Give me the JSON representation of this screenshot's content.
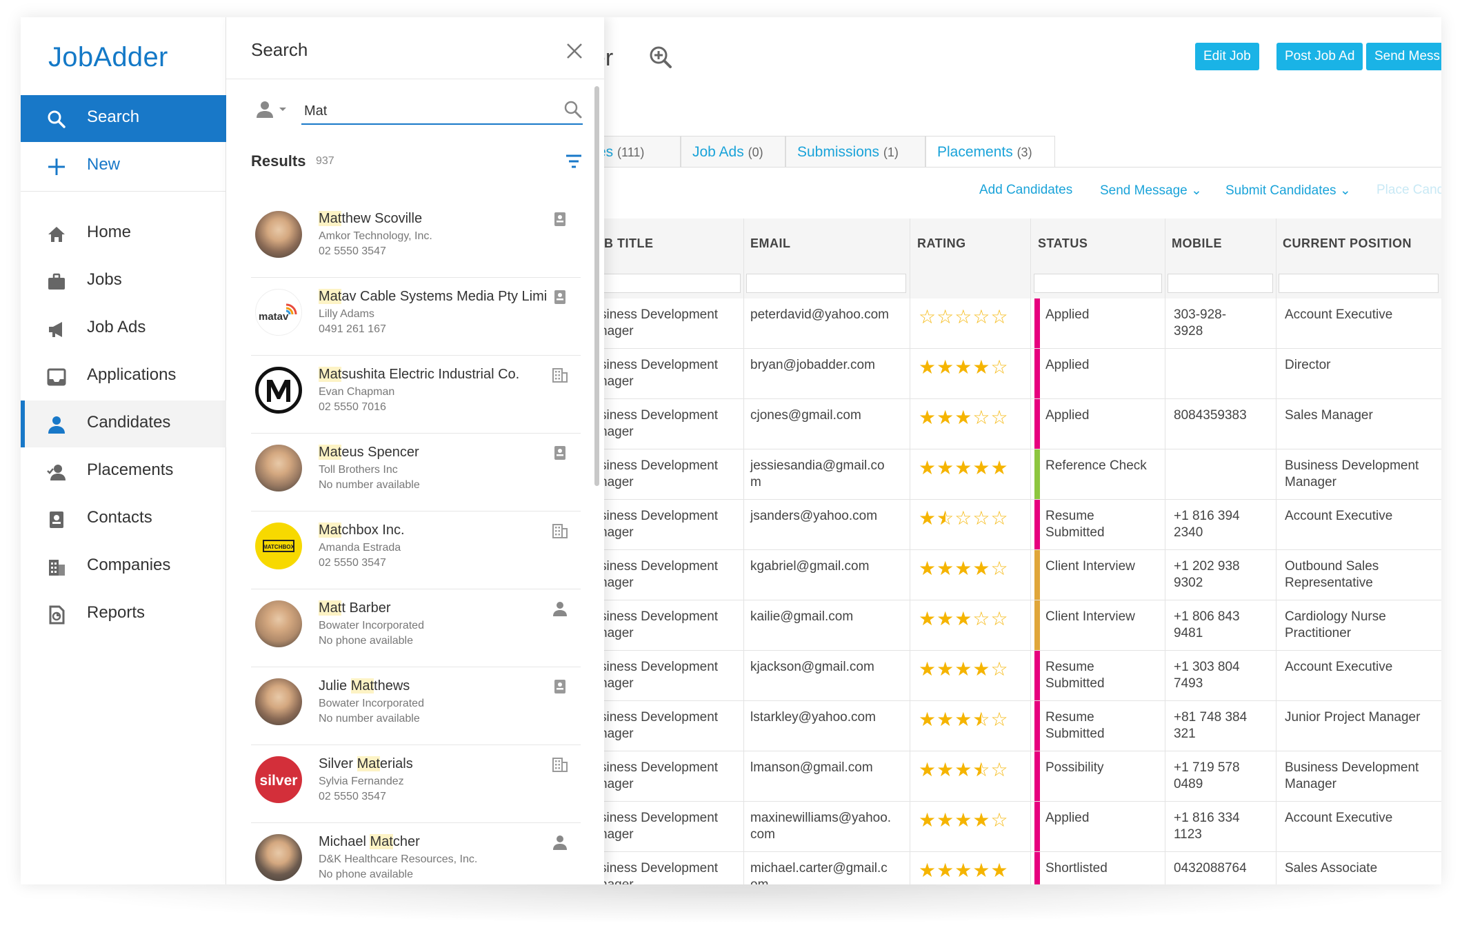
{
  "app": {
    "logo": "JobAdder",
    "page_title": "ger",
    "header_buttons": [
      "Edit Job",
      "Post Job Ad",
      "Send Mess"
    ]
  },
  "sidebar": {
    "items": [
      {
        "label": "Search",
        "icon": "search-icon"
      },
      {
        "label": "New",
        "icon": "plus-icon"
      },
      {
        "label": "Home",
        "icon": "home-icon"
      },
      {
        "label": "Jobs",
        "icon": "briefcase-icon"
      },
      {
        "label": "Job Ads",
        "icon": "megaphone-icon"
      },
      {
        "label": "Applications",
        "icon": "inbox-icon"
      },
      {
        "label": "Candidates",
        "icon": "person-icon"
      },
      {
        "label": "Placements",
        "icon": "person-check-icon"
      },
      {
        "label": "Contacts",
        "icon": "contact-card-icon"
      },
      {
        "label": "Companies",
        "icon": "building-icon"
      },
      {
        "label": "Reports",
        "icon": "report-icon"
      }
    ],
    "active": "Candidates"
  },
  "tabs": [
    {
      "label": "es",
      "count": "(111)"
    },
    {
      "label": "Job Ads",
      "count": "(0)"
    },
    {
      "label": "Submissions",
      "count": "(1)"
    },
    {
      "label": "Placements",
      "count": "(3)"
    }
  ],
  "actions": {
    "add": "Add Candidates",
    "send": "Send Message",
    "submit": "Submit Candidates",
    "place": "Place Cand"
  },
  "grid": {
    "columns": [
      "B TITLE",
      "EMAIL",
      "RATING",
      "STATUS",
      "MOBILE",
      "CURRENT POSITION"
    ],
    "rows": [
      {
        "title": [
          "siness Development",
          "nager"
        ],
        "email": [
          "peterdavid@yahoo.com"
        ],
        "rating": 0,
        "status": [
          "Applied"
        ],
        "status_color": "#e6007e",
        "mobile": [
          "303-928-",
          "3928"
        ],
        "position": [
          "Account Executive"
        ]
      },
      {
        "title": [
          "siness Development",
          "nager"
        ],
        "email": [
          "bryan@jobadder.com"
        ],
        "rating": 4,
        "status": [
          "Applied"
        ],
        "status_color": "#e6007e",
        "mobile": [
          ""
        ],
        "position": [
          "Director"
        ]
      },
      {
        "title": [
          "siness Development",
          "nager"
        ],
        "email": [
          "cjones@gmail.com"
        ],
        "rating": 3,
        "status": [
          "Applied"
        ],
        "status_color": "#e6007e",
        "mobile": [
          "8084359383"
        ],
        "position": [
          "Sales Manager"
        ]
      },
      {
        "title": [
          "siness Development",
          "nager"
        ],
        "email": [
          "jessiesandia@gmail.co",
          "m"
        ],
        "rating": 5,
        "status": [
          "Reference Check"
        ],
        "status_color": "#8dc63f",
        "mobile": [
          ""
        ],
        "position": [
          "Business Development",
          "Manager"
        ]
      },
      {
        "title": [
          "siness Development",
          "nager"
        ],
        "email": [
          "jsanders@yahoo.com"
        ],
        "rating": 1.5,
        "status": [
          "Resume",
          "Submitted"
        ],
        "status_color": "#e6007e",
        "mobile": [
          "+1 816 394",
          "2340"
        ],
        "position": [
          "Account Executive"
        ]
      },
      {
        "title": [
          "siness Development",
          "nager"
        ],
        "email": [
          "kgabriel@gmail.com"
        ],
        "rating": 4,
        "status": [
          "Client Interview"
        ],
        "status_color": "#e0a63a",
        "mobile": [
          "+1 202 938",
          "9302"
        ],
        "position": [
          "Outbound Sales",
          "Representative"
        ]
      },
      {
        "title": [
          "siness Development",
          "nager"
        ],
        "email": [
          "kailie@gmail.com"
        ],
        "rating": 3,
        "status": [
          "Client Interview"
        ],
        "status_color": "#e0a63a",
        "mobile": [
          "+1 806 843",
          "9481"
        ],
        "position": [
          "Cardiology Nurse",
          "Practitioner"
        ]
      },
      {
        "title": [
          "siness Development",
          "nager"
        ],
        "email": [
          "kjackson@gmail.com"
        ],
        "rating": 4,
        "status": [
          "Resume",
          "Submitted"
        ],
        "status_color": "#e6007e",
        "mobile": [
          "+1 303 804",
          "7493"
        ],
        "position": [
          "Account Executive"
        ]
      },
      {
        "title": [
          "siness Development",
          "nager"
        ],
        "email": [
          "lstarkley@yahoo.com"
        ],
        "rating": 3.5,
        "status": [
          "Resume",
          "Submitted"
        ],
        "status_color": "#e6007e",
        "mobile": [
          "+81 748 384",
          "321"
        ],
        "position": [
          "Junior Project Manager"
        ]
      },
      {
        "title": [
          "siness Development",
          "nager"
        ],
        "email": [
          "lmanson@gmail.com"
        ],
        "rating": 3.5,
        "status": [
          "Possibility"
        ],
        "status_color": "#e6007e",
        "mobile": [
          "+1 719 578",
          "0489"
        ],
        "position": [
          "Business Development",
          "Manager"
        ]
      },
      {
        "title": [
          "siness Development",
          "nager"
        ],
        "email": [
          "maxinewilliams@yahoo.",
          "com"
        ],
        "rating": 4,
        "status": [
          "Applied"
        ],
        "status_color": "#e6007e",
        "mobile": [
          "+1 816 334",
          "1123"
        ],
        "position": [
          "Account Executive"
        ]
      },
      {
        "title": [
          "siness Development",
          "nager"
        ],
        "email": [
          "michael.carter@gmail.c",
          "om"
        ],
        "rating": 5,
        "status": [
          "Shortlisted"
        ],
        "status_color": "#e6007e",
        "mobile": [
          "0432088764"
        ],
        "position": [
          "Sales Associate"
        ]
      }
    ]
  },
  "search": {
    "title": "Search",
    "value": "Mat",
    "results_label": "Results",
    "results_count": "937",
    "results": [
      {
        "pre": "",
        "hl": "Mat",
        "post": "thew Scoville",
        "line2": "Amkor Technology, Inc.",
        "line3": "02 5550 3547",
        "type": "contact-card-icon",
        "avatar": "photo"
      },
      {
        "pre": "",
        "hl": "Mat",
        "post": "av Cable Systems Media Pty Limi",
        "line2": "Lilly Adams",
        "line3": "0491 261 167",
        "type": "contact-card-icon",
        "avatar": "matav"
      },
      {
        "pre": "",
        "hl": "Mat",
        "post": "sushita Electric Industrial Co.",
        "line2": "Evan Chapman",
        "line3": "02 5550 7016",
        "type": "building-icon",
        "avatar": "m-logo"
      },
      {
        "pre": "",
        "hl": "Mat",
        "post": "eus Spencer",
        "line2": "Toll Brothers Inc",
        "line3": "No number available",
        "type": "contact-card-icon",
        "avatar": "photo"
      },
      {
        "pre": "",
        "hl": "Mat",
        "post": "chbox Inc.",
        "line2": "Amanda Estrada",
        "line3": "02 5550 3547",
        "type": "building-icon",
        "avatar": "matchbox"
      },
      {
        "pre": "",
        "hl": "Mat",
        "post": "t Barber",
        "line2": "Bowater Incorporated",
        "line3": "No phone available",
        "type": "person-icon",
        "avatar": "photo"
      },
      {
        "pre": "Julie ",
        "hl": "Mat",
        "post": "thews",
        "line2": "Bowater Incorporated",
        "line3": "No number available",
        "type": "contact-card-icon",
        "avatar": "photo"
      },
      {
        "pre": "Silver ",
        "hl": "Mat",
        "post": "erials",
        "line2": "Sylvia Fernandez",
        "line3": "02 5550 3547",
        "type": "building-icon",
        "avatar": "silver"
      },
      {
        "pre": "Michael ",
        "hl": "Mat",
        "post": "cher",
        "line2": "D&K Healthcare Resources, Inc.",
        "line3": "No phone available",
        "type": "person-icon",
        "avatar": "photo"
      }
    ],
    "avatar_texts": {
      "matav": "matav",
      "silver": "silver",
      "matchbox": "MATCHBOX"
    }
  },
  "colors": {
    "accent": "#1878c8",
    "button": "#1ab3e6",
    "star": "#f5b400",
    "pink": "#e6007e",
    "green": "#8dc63f",
    "amber": "#e0a63a"
  }
}
